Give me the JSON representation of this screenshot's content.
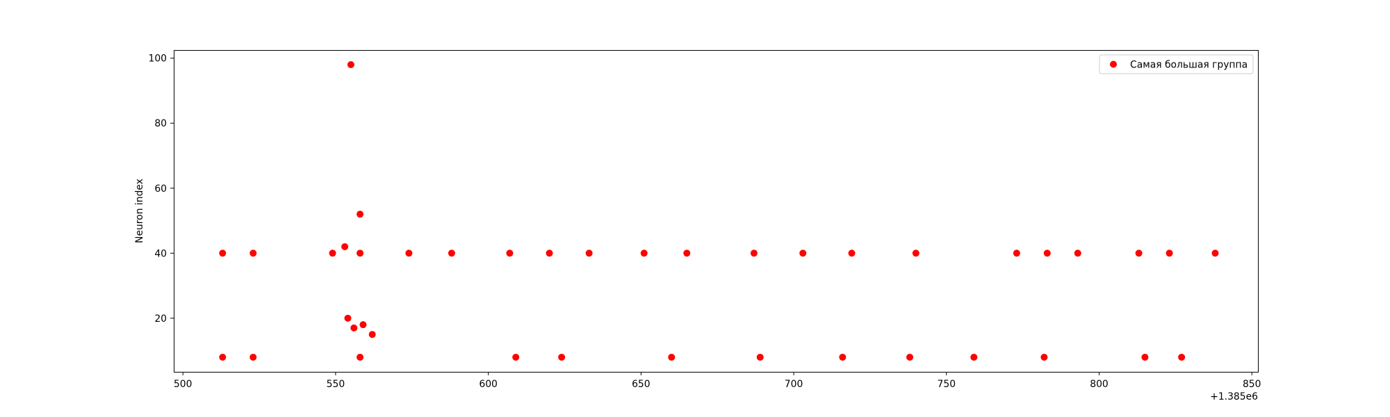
{
  "chart_data": {
    "type": "scatter",
    "title": "",
    "xlabel": "",
    "ylabel": "Neuron index",
    "x_offset_label": "+1.385e6",
    "xlim": [
      497,
      852
    ],
    "ylim": [
      3.5,
      102.5
    ],
    "xticks": [
      500,
      550,
      600,
      650,
      700,
      750,
      800,
      850
    ],
    "xtick_labels": [
      "500",
      "550",
      "600",
      "650",
      "700",
      "750",
      "800",
      "850"
    ],
    "yticks": [
      20,
      40,
      60,
      80,
      100
    ],
    "ytick_labels": [
      "20",
      "40",
      "60",
      "80",
      "100"
    ],
    "grid": false,
    "legend": {
      "position": "top-right",
      "entries": [
        "Самая большая группа"
      ]
    },
    "series": [
      {
        "name": "Самая большая группа",
        "color": "#ff0000",
        "marker": "circle",
        "points": [
          {
            "x": 513,
            "y": 40
          },
          {
            "x": 513,
            "y": 8
          },
          {
            "x": 523,
            "y": 40
          },
          {
            "x": 523,
            "y": 8
          },
          {
            "x": 549,
            "y": 40
          },
          {
            "x": 553,
            "y": 42
          },
          {
            "x": 554,
            "y": 20
          },
          {
            "x": 555,
            "y": 98
          },
          {
            "x": 556,
            "y": 17
          },
          {
            "x": 558,
            "y": 52
          },
          {
            "x": 558,
            "y": 40
          },
          {
            "x": 558,
            "y": 8
          },
          {
            "x": 559,
            "y": 18
          },
          {
            "x": 562,
            "y": 15
          },
          {
            "x": 574,
            "y": 40
          },
          {
            "x": 588,
            "y": 40
          },
          {
            "x": 607,
            "y": 40
          },
          {
            "x": 609,
            "y": 8
          },
          {
            "x": 620,
            "y": 40
          },
          {
            "x": 624,
            "y": 8
          },
          {
            "x": 633,
            "y": 40
          },
          {
            "x": 651,
            "y": 40
          },
          {
            "x": 660,
            "y": 8
          },
          {
            "x": 665,
            "y": 40
          },
          {
            "x": 687,
            "y": 40
          },
          {
            "x": 689,
            "y": 8
          },
          {
            "x": 703,
            "y": 40
          },
          {
            "x": 716,
            "y": 8
          },
          {
            "x": 719,
            "y": 40
          },
          {
            "x": 738,
            "y": 8
          },
          {
            "x": 740,
            "y": 40
          },
          {
            "x": 759,
            "y": 8
          },
          {
            "x": 773,
            "y": 40
          },
          {
            "x": 782,
            "y": 8
          },
          {
            "x": 783,
            "y": 40
          },
          {
            "x": 793,
            "y": 40
          },
          {
            "x": 813,
            "y": 40
          },
          {
            "x": 815,
            "y": 8
          },
          {
            "x": 823,
            "y": 40
          },
          {
            "x": 827,
            "y": 8
          },
          {
            "x": 838,
            "y": 40
          }
        ]
      }
    ]
  }
}
